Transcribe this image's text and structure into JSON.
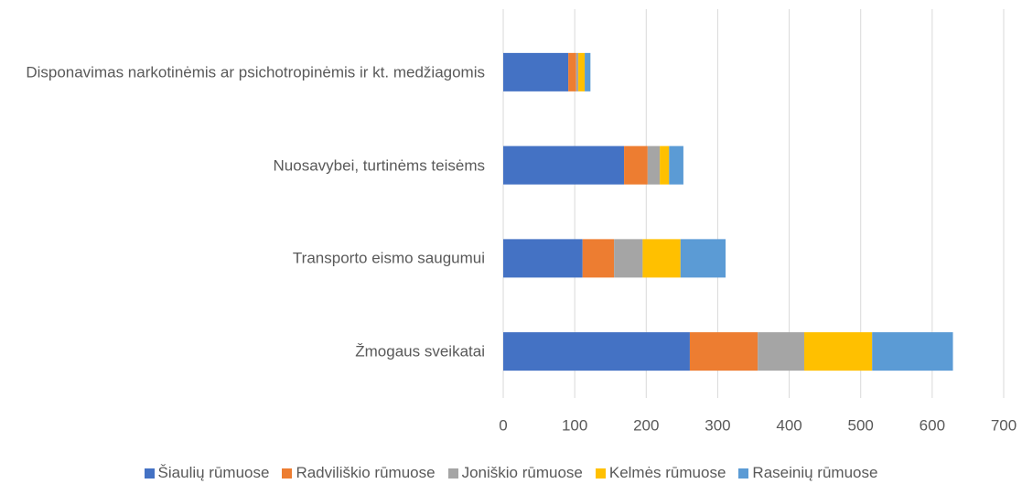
{
  "chart_data": {
    "type": "stacked_barh",
    "categories": [
      "Disponavimas narkotinėmis ar psichotropinėmis ir kt. medžiagomis",
      "Nuosavybei, turtinėms teisėms",
      "Transporto eismo saugumui",
      "Žmogaus sveikatai"
    ],
    "series": [
      {
        "name": "Šiaulių rūmuose",
        "color": "#4472c4",
        "values": [
          91,
          169,
          111,
          261
        ]
      },
      {
        "name": "Radviliškio rūmuose",
        "color": "#ed7d31",
        "values": [
          11,
          33,
          44,
          95
        ]
      },
      {
        "name": "Joniškio rūmuose",
        "color": "#a5a5a5",
        "values": [
          3,
          17,
          40,
          65
        ]
      },
      {
        "name": "Kelmės rūmuose",
        "color": "#ffc000",
        "values": [
          9,
          13,
          53,
          95
        ]
      },
      {
        "name": "Raseinių rūmuose",
        "color": "#5b9bd5",
        "values": [
          8,
          20,
          63,
          113
        ]
      }
    ],
    "xlim": [
      0,
      700
    ],
    "xticks": [
      0,
      100,
      200,
      300,
      400,
      500,
      600,
      700
    ],
    "grid": true,
    "legend": "bottom"
  }
}
